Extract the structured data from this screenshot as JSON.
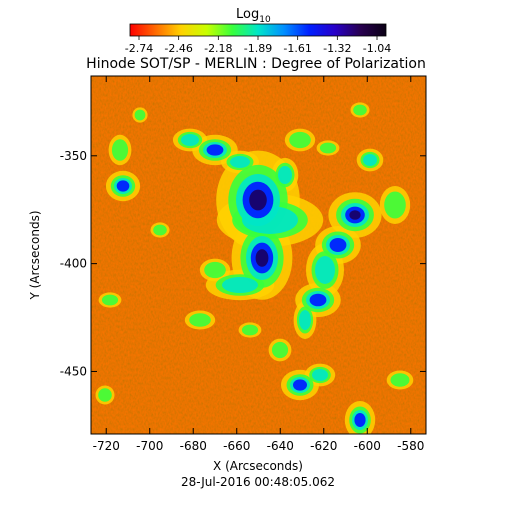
{
  "colorbar": {
    "label_main": "Log",
    "label_sub": "10",
    "ticks": [
      "-2.74",
      "-2.46",
      "-2.18",
      "-1.89",
      "-1.61",
      "-1.32",
      "-1.04"
    ],
    "colors": [
      "#ff0000",
      "#ff6a00",
      "#ffd200",
      "#c8ff00",
      "#38ff3c",
      "#00e6c8",
      "#0090ff",
      "#0020ff",
      "#2800c8",
      "#280050",
      "#0a0014"
    ]
  },
  "chart_data": {
    "type": "heatmap",
    "title": "Hinode SOT/SP - MERLIN : Degree of Polarization",
    "xlabel": "X (Arcseconds)",
    "ylabel": "Y (Arcseconds)",
    "xlim": [
      -727,
      -573
    ],
    "ylim": [
      -479,
      -313
    ],
    "x_ticks": [
      -720,
      -700,
      -680,
      -660,
      -640,
      -620,
      -600,
      -580
    ],
    "y_ticks": [
      -350,
      -400,
      -450
    ],
    "value_range": [
      -2.74,
      -1.04
    ],
    "value_scale": "log10",
    "footer": "28-Jul-2016 00:48:05.062"
  }
}
